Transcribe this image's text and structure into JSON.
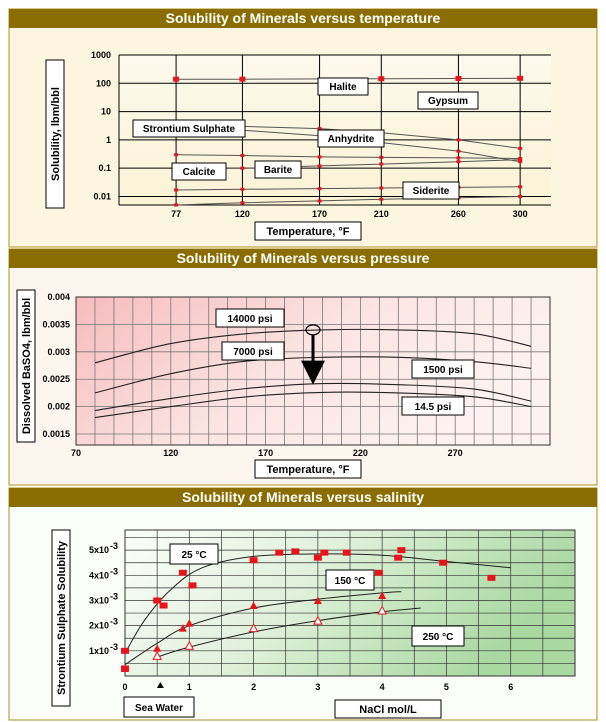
{
  "chart_data": [
    {
      "type": "line",
      "title": "Solubility of Minerals versus temperature",
      "xlabel": "Temperature, °F",
      "ylabel": "Solubility, lbm/bbl",
      "yscale": "log",
      "ylim": [
        0.005,
        1000
      ],
      "xlim": [
        40,
        320
      ],
      "y_ticks": [
        "0.01",
        "0.1",
        "1",
        "10",
        "100",
        "1000"
      ],
      "x_ticks": [
        77,
        120,
        170,
        210,
        260,
        300
      ],
      "grid": true,
      "series": [
        {
          "name": "Halite",
          "x": [
            77,
            120,
            210,
            260,
            300
          ],
          "values": [
            140,
            140,
            145,
            148,
            150
          ]
        },
        {
          "name": "Gypsum",
          "x": [
            77,
            120,
            170,
            210,
            260,
            300
          ],
          "values": [
            3.3,
            3.0,
            2.5,
            1.8,
            1.0,
            0.5
          ]
        },
        {
          "name": "Strontium Sulphate",
          "x": [
            77,
            120,
            170,
            210,
            260,
            300
          ],
          "values": [
            3.2,
            2.2,
            1.4,
            0.8,
            0.4,
            0.17
          ]
        },
        {
          "name": "Anhydrite",
          "x": [
            77,
            120,
            170,
            210,
            260,
            300
          ],
          "values": [
            0.3,
            0.28,
            0.25,
            0.24,
            0.23,
            0.22
          ]
        },
        {
          "name": "Barite",
          "x": [
            77,
            120,
            170,
            210,
            260,
            300
          ],
          "values": [
            0.1,
            0.1,
            0.12,
            0.14,
            0.17,
            0.2
          ]
        },
        {
          "name": "Calcite",
          "x": [
            77,
            120,
            170,
            210,
            260,
            300
          ],
          "values": [
            0.017,
            0.018,
            0.019,
            0.02,
            0.021,
            0.022
          ]
        },
        {
          "name": "Siderite",
          "x": [
            77,
            120,
            170,
            210,
            260,
            300
          ],
          "values": [
            0.005,
            0.006,
            0.007,
            0.008,
            0.009,
            0.01
          ]
        }
      ]
    },
    {
      "type": "line",
      "title": "Solubility of Minerals versus pressure",
      "xlabel": "Temperature, °F",
      "ylabel": "Dissolved BaSO4, lbm/bbl",
      "ylim": [
        0.0013,
        0.004
      ],
      "xlim": [
        70,
        320
      ],
      "y_ticks": [
        "0.0015",
        "0.002",
        "0.0025",
        "0.003",
        "0.0035",
        "0.004"
      ],
      "x_ticks": [
        70,
        120,
        170,
        220,
        270
      ],
      "grid": true,
      "annotation": "Arrow from 14000 psi curve maximum down to 1500 psi curve near 195 °F",
      "series": [
        {
          "name": "14000 psi",
          "x": [
            80,
            120,
            160,
            200,
            240,
            280,
            310
          ],
          "values": [
            0.0028,
            0.00315,
            0.00333,
            0.0034,
            0.0034,
            0.00333,
            0.0031
          ]
        },
        {
          "name": "7000 psi",
          "x": [
            80,
            120,
            160,
            200,
            240,
            280,
            310
          ],
          "values": [
            0.00225,
            0.0026,
            0.00283,
            0.0029,
            0.0029,
            0.00282,
            0.0027
          ]
        },
        {
          "name": "1500 psi",
          "x": [
            80,
            120,
            160,
            200,
            240,
            280,
            310
          ],
          "values": [
            0.00193,
            0.00215,
            0.00233,
            0.00242,
            0.0024,
            0.00232,
            0.0021
          ]
        },
        {
          "name": "14.5 psi",
          "x": [
            80,
            120,
            160,
            200,
            240,
            280,
            310
          ],
          "values": [
            0.0018,
            0.002,
            0.00218,
            0.00226,
            0.00225,
            0.00218,
            0.002
          ]
        }
      ]
    },
    {
      "type": "scatter",
      "title": "Solubility of Minerals versus salinity",
      "xlabel": "NaCl mol/L",
      "ylabel": "Strontium Sulphate Solubility",
      "ylim": [
        0,
        5.8
      ],
      "ylim_units": "x10^-3",
      "xlim": [
        0,
        7
      ],
      "y_ticks": [
        "1x10",
        "2x10",
        "3x10",
        "4x10",
        "5x10"
      ],
      "x_ticks": [
        "0",
        "1",
        "2",
        "3",
        "4",
        "5",
        "6"
      ],
      "grid": true,
      "marker": "Sea Water",
      "series": [
        {
          "name": "25 °C",
          "x": [
            0.0,
            0.0,
            0.5,
            0.6,
            0.9,
            1.05,
            2.0,
            2.4,
            2.65,
            3.0,
            3.1,
            3.45,
            3.95,
            4.25,
            4.3,
            4.95,
            5.7
          ],
          "values": [
            0.3,
            1.0,
            3.0,
            2.8,
            4.1,
            3.6,
            4.6,
            4.9,
            4.95,
            4.7,
            4.9,
            4.9,
            4.1,
            4.7,
            5.0,
            4.5,
            3.9
          ]
        },
        {
          "name": "150 °C",
          "x": [
            0.0,
            0.5,
            0.9,
            1.0,
            2.0,
            3.0,
            4.0
          ],
          "values": [
            0.3,
            1.1,
            1.9,
            2.1,
            2.8,
            3.0,
            3.2
          ]
        },
        {
          "name": "250 °C",
          "x": [
            0.5,
            1.0,
            2.0,
            3.0,
            4.0
          ],
          "values": [
            0.8,
            1.2,
            1.9,
            2.2,
            2.6
          ]
        }
      ]
    }
  ]
}
